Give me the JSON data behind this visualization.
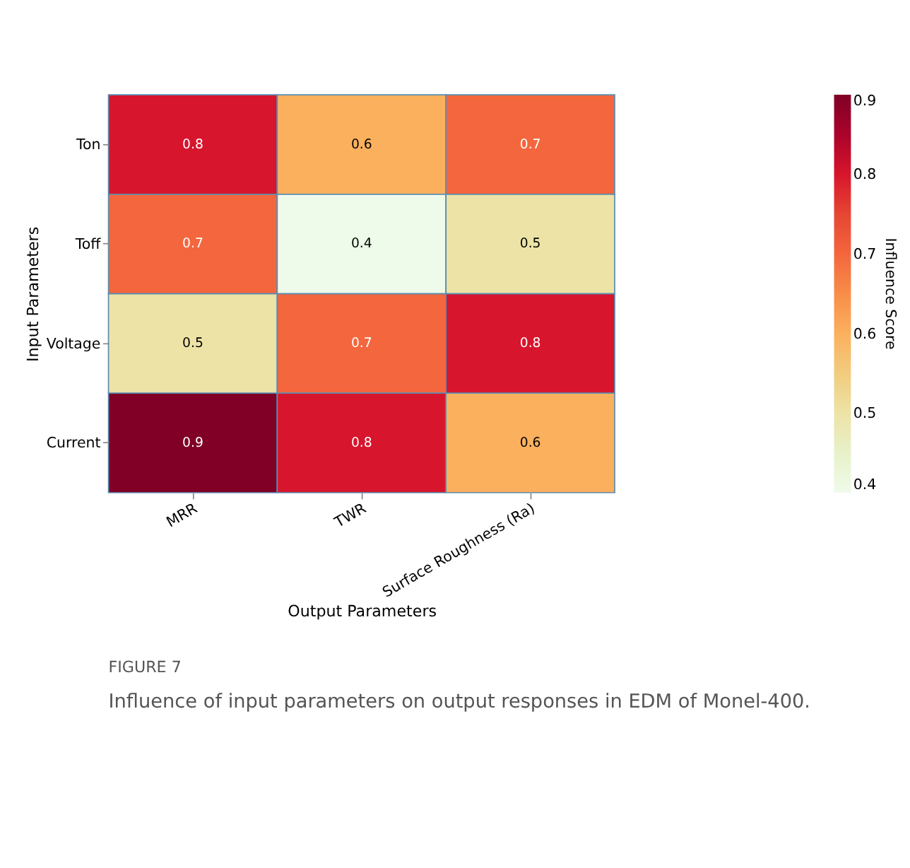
{
  "chart_data": {
    "type": "heatmap",
    "xlabel": "Output Parameters",
    "ylabel": "Input Parameters",
    "clabel": "Influence Score",
    "categories": [
      "MRR",
      "TWR",
      "Surface Roughness (Ra)"
    ],
    "y_categories": [
      "Ton",
      "Toff",
      "Voltage",
      "Current"
    ],
    "cells": [
      [
        0.8,
        0.6,
        0.7
      ],
      [
        0.7,
        0.4,
        0.5
      ],
      [
        0.5,
        0.7,
        0.8
      ],
      [
        0.9,
        0.8,
        0.6
      ]
    ],
    "data_labels": true,
    "clim": [
      0.4,
      0.9
    ],
    "cticks": [
      0.4,
      0.5,
      0.6,
      0.7,
      0.8,
      0.9
    ],
    "annotations": [
      "FIGURE 7",
      "Influence of input parameters on output responses in EDM of Monel-400."
    ]
  }
}
